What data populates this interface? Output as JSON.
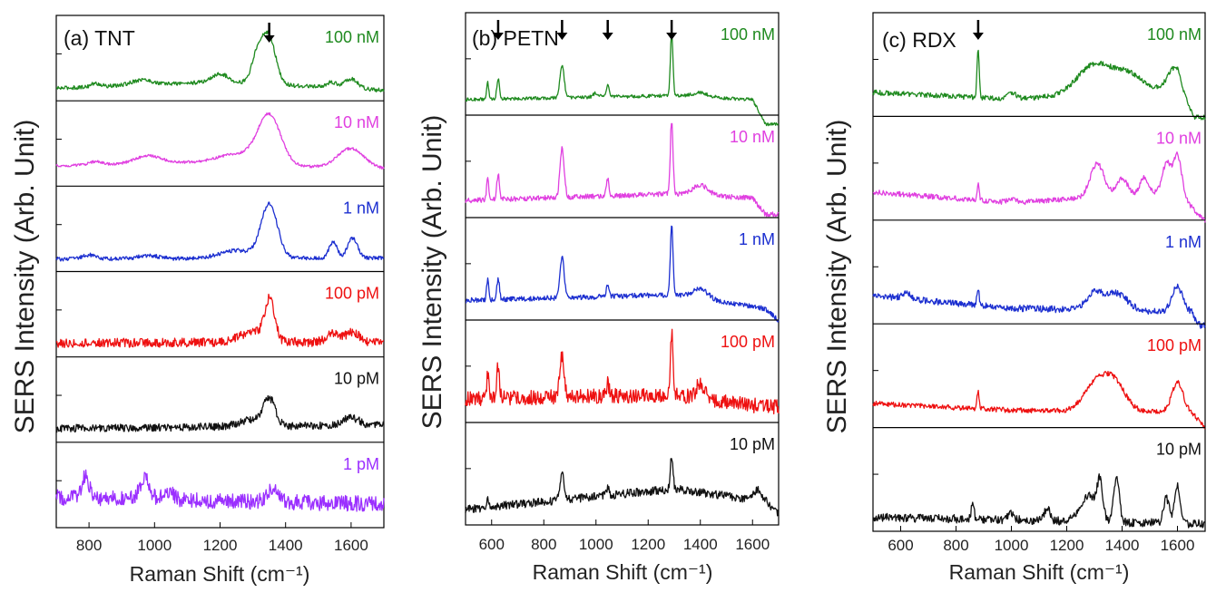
{
  "chart_data": [
    {
      "type": "line",
      "panel": "a",
      "title": "(a) TNT",
      "ylabel": "SERS Intensity (Arb. Unit)",
      "xlabel": "Raman Shift (cm⁻¹)",
      "xlim": [
        700,
        1700
      ],
      "xticks": [
        800,
        1000,
        1200,
        1400,
        1600
      ],
      "marked_peaks": [
        1350
      ],
      "series": [
        {
          "name": "100 nM",
          "color": "#1f8a1f",
          "noise": 0.03,
          "baseline": [
            [
              700,
              0.08
            ],
            [
              1200,
              0.18
            ],
            [
              1700,
              0.05
            ]
          ],
          "peaks": [
            [
              820,
              0.05,
              15
            ],
            [
              960,
              0.08,
              30
            ],
            [
              1200,
              0.12,
              25
            ],
            [
              1315,
              0.45,
              18
            ],
            [
              1350,
              0.7,
              20
            ],
            [
              1540,
              0.08,
              15
            ],
            [
              1600,
              0.15,
              20
            ]
          ]
        },
        {
          "name": "10 nM",
          "color": "#e040e0",
          "noise": 0.02,
          "baseline": [
            [
              700,
              0.2
            ],
            [
              1100,
              0.25
            ],
            [
              1700,
              0.15
            ]
          ],
          "peaks": [
            [
              820,
              0.05,
              20
            ],
            [
              980,
              0.12,
              40
            ],
            [
              1250,
              0.15,
              60
            ],
            [
              1350,
              0.75,
              35
            ],
            [
              1600,
              0.3,
              40
            ]
          ]
        },
        {
          "name": "1 nM",
          "color": "#1c2fd0",
          "noise": 0.03,
          "baseline": [
            [
              700,
              0.08
            ],
            [
              1700,
              0.1
            ]
          ],
          "peaks": [
            [
              800,
              0.06,
              20
            ],
            [
              980,
              0.05,
              30
            ],
            [
              1250,
              0.12,
              50
            ],
            [
              1350,
              0.82,
              25
            ],
            [
              1545,
              0.25,
              12
            ],
            [
              1605,
              0.3,
              15
            ]
          ]
        },
        {
          "name": "100 pM",
          "color": "#ee1111",
          "noise": 0.07,
          "baseline": [
            [
              700,
              0.1
            ],
            [
              1700,
              0.12
            ]
          ],
          "peaks": [
            [
              1300,
              0.15,
              40
            ],
            [
              1352,
              0.62,
              15
            ],
            [
              1545,
              0.12,
              20
            ],
            [
              1605,
              0.15,
              20
            ]
          ]
        },
        {
          "name": "10 pM",
          "color": "#111111",
          "noise": 0.06,
          "baseline": [
            [
              700,
              0.1
            ],
            [
              1700,
              0.15
            ]
          ],
          "peaks": [
            [
              1300,
              0.1,
              40
            ],
            [
              1350,
              0.4,
              18
            ],
            [
              1600,
              0.12,
              25
            ]
          ]
        },
        {
          "name": "1 pM",
          "color": "#9b30ff",
          "noise": 0.12,
          "baseline": [
            [
              700,
              0.35
            ],
            [
              1700,
              0.25
            ]
          ],
          "peaks": [
            [
              790,
              0.35,
              10
            ],
            [
              970,
              0.3,
              15
            ],
            [
              1040,
              0.15,
              15
            ],
            [
              1360,
              0.2,
              15
            ]
          ]
        }
      ]
    },
    {
      "type": "line",
      "panel": "b",
      "title": "(b) PETN",
      "ylabel": "SERS Intensity (Arb. Unit)",
      "xlabel": "Raman Shift (cm⁻¹)",
      "xlim": [
        500,
        1700
      ],
      "xticks": [
        600,
        800,
        1000,
        1200,
        1400,
        1600
      ],
      "marked_peaks": [
        625,
        870,
        1045,
        1290
      ],
      "series": [
        {
          "name": "100 nM",
          "color": "#1f8a1f",
          "noise": 0.02,
          "baseline": [
            [
              500,
              0.1
            ],
            [
              1300,
              0.15
            ],
            [
              1600,
              0.1
            ],
            [
              1650,
              -0.2
            ]
          ],
          "peaks": [
            [
              585,
              0.2,
              4
            ],
            [
              625,
              0.25,
              5
            ],
            [
              870,
              0.4,
              8
            ],
            [
              1000,
              0.05,
              10
            ],
            [
              1045,
              0.15,
              5
            ],
            [
              1290,
              0.75,
              5
            ],
            [
              1400,
              0.05,
              30
            ]
          ]
        },
        {
          "name": "10 nM",
          "color": "#e040e0",
          "noise": 0.03,
          "baseline": [
            [
              500,
              0.12
            ],
            [
              1300,
              0.2
            ],
            [
              1600,
              0.15
            ],
            [
              1650,
              -0.05
            ]
          ],
          "peaks": [
            [
              585,
              0.28,
              4
            ],
            [
              625,
              0.3,
              5
            ],
            [
              870,
              0.6,
              8
            ],
            [
              1045,
              0.2,
              5
            ],
            [
              1290,
              0.9,
              5
            ],
            [
              1400,
              0.12,
              30
            ]
          ]
        },
        {
          "name": "1 nM",
          "color": "#1c2fd0",
          "noise": 0.03,
          "baseline": [
            [
              500,
              0.15
            ],
            [
              1300,
              0.22
            ],
            [
              1650,
              0.05
            ],
            [
              1700,
              -0.1
            ]
          ],
          "peaks": [
            [
              585,
              0.25,
              4
            ],
            [
              625,
              0.25,
              5
            ],
            [
              870,
              0.5,
              8
            ],
            [
              1045,
              0.15,
              5
            ],
            [
              1290,
              0.85,
              5
            ],
            [
              1400,
              0.12,
              30
            ]
          ]
        },
        {
          "name": "100 pM",
          "color": "#ee1111",
          "noise": 0.09,
          "baseline": [
            [
              500,
              0.2
            ],
            [
              1300,
              0.25
            ],
            [
              1650,
              0.1
            ]
          ],
          "peaks": [
            [
              585,
              0.3,
              4
            ],
            [
              625,
              0.4,
              5
            ],
            [
              870,
              0.5,
              8
            ],
            [
              1045,
              0.15,
              5
            ],
            [
              1290,
              0.75,
              5
            ],
            [
              1400,
              0.18,
              15
            ]
          ]
        },
        {
          "name": "10 pM",
          "color": "#111111",
          "noise": 0.05,
          "baseline": [
            [
              500,
              0.1
            ],
            [
              1300,
              0.35
            ],
            [
              1650,
              0.2
            ],
            [
              1700,
              0.05
            ]
          ],
          "peaks": [
            [
              585,
              0.12,
              4
            ],
            [
              870,
              0.3,
              8
            ],
            [
              1045,
              0.1,
              5
            ],
            [
              1290,
              0.4,
              5
            ],
            [
              1620,
              0.12,
              15
            ]
          ]
        }
      ]
    },
    {
      "type": "line",
      "panel": "c",
      "title": "(c) RDX",
      "ylabel": "SERS Intensity (Arb. Unit)",
      "xlabel": "Raman Shift (cm⁻¹)",
      "xlim": [
        500,
        1700
      ],
      "xticks": [
        600,
        800,
        1000,
        1200,
        1400,
        1600
      ],
      "marked_peaks": [
        880
      ],
      "series": [
        {
          "name": "100 nM",
          "color": "#1f8a1f",
          "noise": 0.03,
          "baseline": [
            [
              500,
              0.2
            ],
            [
              1000,
              0.12
            ],
            [
              1600,
              0.25
            ],
            [
              1660,
              -0.1
            ]
          ],
          "peaks": [
            [
              880,
              0.6,
              4
            ],
            [
              1000,
              0.08,
              15
            ],
            [
              1300,
              0.35,
              60
            ],
            [
              1420,
              0.2,
              50
            ],
            [
              1590,
              0.25,
              25
            ]
          ]
        },
        {
          "name": "10 nM",
          "color": "#e040e0",
          "noise": 0.03,
          "baseline": [
            [
              500,
              0.25
            ],
            [
              1000,
              0.12
            ],
            [
              1600,
              0.25
            ],
            [
              1700,
              -0.1
            ]
          ],
          "peaks": [
            [
              880,
              0.2,
              4
            ],
            [
              1000,
              0.05,
              15
            ],
            [
              1310,
              0.4,
              25
            ],
            [
              1400,
              0.2,
              20
            ],
            [
              1480,
              0.2,
              15
            ],
            [
              1560,
              0.35,
              15
            ],
            [
              1600,
              0.45,
              15
            ]
          ]
        },
        {
          "name": "1 nM",
          "color": "#1c2fd0",
          "noise": 0.04,
          "baseline": [
            [
              500,
              0.25
            ],
            [
              1000,
              0.1
            ],
            [
              1650,
              0.05
            ],
            [
              1680,
              -0.1
            ]
          ],
          "peaks": [
            [
              620,
              0.08,
              15
            ],
            [
              880,
              0.2,
              4
            ],
            [
              1300,
              0.2,
              30
            ],
            [
              1380,
              0.2,
              40
            ],
            [
              1600,
              0.3,
              20
            ]
          ]
        },
        {
          "name": "100 pM",
          "color": "#ee1111",
          "noise": 0.03,
          "baseline": [
            [
              500,
              0.2
            ],
            [
              1000,
              0.12
            ],
            [
              1650,
              0.1
            ],
            [
              1700,
              -0.1
            ]
          ],
          "peaks": [
            [
              880,
              0.2,
              4
            ],
            [
              1300,
              0.3,
              40
            ],
            [
              1370,
              0.35,
              40
            ],
            [
              1600,
              0.35,
              20
            ]
          ]
        },
        {
          "name": "10 pM",
          "color": "#111111",
          "noise": 0.05,
          "baseline": [
            [
              500,
              0.08
            ],
            [
              1000,
              0.05
            ],
            [
              1700,
              0.0
            ]
          ],
          "peaks": [
            [
              860,
              0.2,
              5
            ],
            [
              1000,
              0.08,
              10
            ],
            [
              1130,
              0.15,
              10
            ],
            [
              1280,
              0.3,
              30
            ],
            [
              1320,
              0.4,
              10
            ],
            [
              1380,
              0.55,
              10
            ],
            [
              1560,
              0.3,
              10
            ],
            [
              1600,
              0.45,
              10
            ]
          ]
        }
      ]
    }
  ]
}
